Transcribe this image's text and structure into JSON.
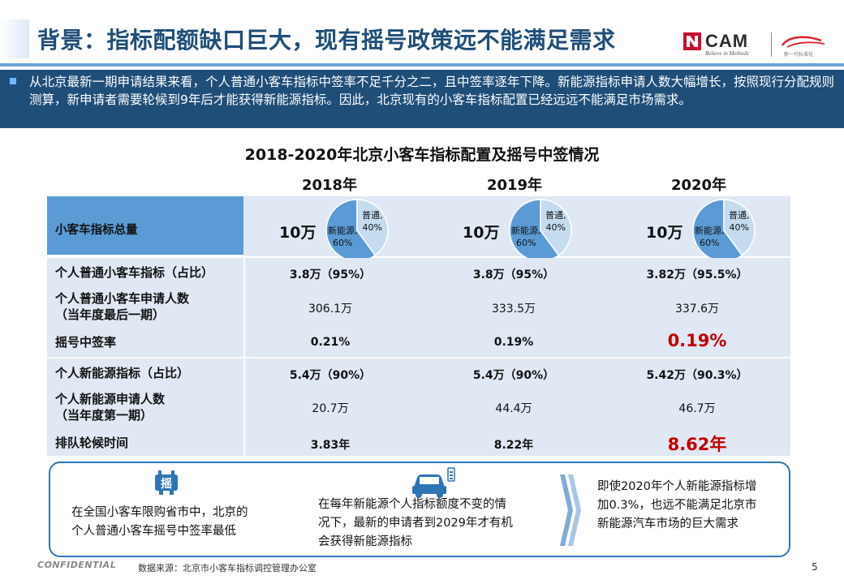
{
  "header": {
    "title": "背景：指标配额缺口巨大，现有摇号政策远不能满足需求",
    "logo_text": "CAM",
    "logo_tagline": "Believe in Methods",
    "partner_logo_caption": "新一代标准化"
  },
  "intro": {
    "text": "从北京最新一期申请结果来看，个人普通小客车指标中签率不足千分之二，且中签率逐年下降。新能源指标申请人数大幅增长，按照现行分配规则测算，新申请者需要轮候到9年后才能获得新能源指标。因此，北京现有的小客车指标配置已经远远不能满足市场需求。"
  },
  "table": {
    "title": "2018-2020年北京小客车指标配置及摇号中签情况",
    "years": [
      "2018年",
      "2019年",
      "2020年"
    ],
    "total_label": "小客车指标总量",
    "total_values": [
      "10万",
      "10万",
      "10万"
    ],
    "rows": {
      "ordinary_quota": {
        "label": "个人普通小客车指标（占比）",
        "values": [
          "3.8万（95%）",
          "3.8万（95%）",
          "3.82万（95.5%）"
        ]
      },
      "ordinary_applicants": {
        "label_line1": "个人普通小客车申请人数",
        "label_line2": "（当年度最后一期）",
        "values": [
          "306.1万",
          "333.5万",
          "337.6万"
        ]
      },
      "win_rate": {
        "label": "摇号中签率",
        "values": [
          "0.21%",
          "0.19%",
          "0.19%"
        ]
      },
      "nev_quota": {
        "label": "个人新能源指标（占比）",
        "values": [
          "5.4万（90%）",
          "5.4万（90%）",
          "5.42万（90.3%）"
        ]
      },
      "nev_applicants": {
        "label_line1": "个人新能源申请人数",
        "label_line2": "（当年度第一期）",
        "values": [
          "20.7万",
          "44.4万",
          "46.7万"
        ]
      },
      "wait_time": {
        "label": "排队轮候时间",
        "values": [
          "3.83年",
          "8.22年",
          "8.62年"
        ]
      }
    }
  },
  "chart_data": [
    {
      "type": "pie",
      "title": "2018年",
      "categories": [
        "普通",
        "新能源"
      ],
      "values": [
        40,
        60
      ],
      "labels": [
        "普通,",
        "40%",
        "新能源,",
        "60%"
      ]
    },
    {
      "type": "pie",
      "title": "2019年",
      "categories": [
        "普通",
        "新能源"
      ],
      "values": [
        40,
        60
      ],
      "labels": [
        "普通,",
        "40%",
        "新能源,",
        "60%"
      ]
    },
    {
      "type": "pie",
      "title": "2020年",
      "categories": [
        "普通",
        "新能源"
      ],
      "values": [
        40,
        60
      ],
      "labels": [
        "普通,",
        "40%",
        "新能源,",
        "60%"
      ]
    }
  ],
  "pie_labels": {
    "ordinary": "普通,",
    "ordinary_pct": "40%",
    "nev": "新能源,",
    "nev_pct": "60%"
  },
  "colors": {
    "pie_ordinary": "#c5dcf0",
    "pie_nev": "#5b9bd5",
    "title": "#1f4e79",
    "highlight": "#c00000"
  },
  "panel": {
    "icon1_char": "摇",
    "point1": [
      "在全国小客车限购省市中，北京的",
      "个人普通小客车摇号中签率最低"
    ],
    "point2": [
      "在每年新能源个人指标额度不变的情",
      "况下，最新的申请者到2029年才有机",
      "会获得新能源指标"
    ],
    "point3": [
      "即使2020年个人新能源指标增",
      "加0.3%，也远不能满足北京市",
      "新能源汽车市场的巨大需求"
    ]
  },
  "footer": {
    "confidential": "CONFIDENTIAL",
    "source": "数据来源：北京市小客车指标调控管理办公室",
    "page": "5"
  }
}
